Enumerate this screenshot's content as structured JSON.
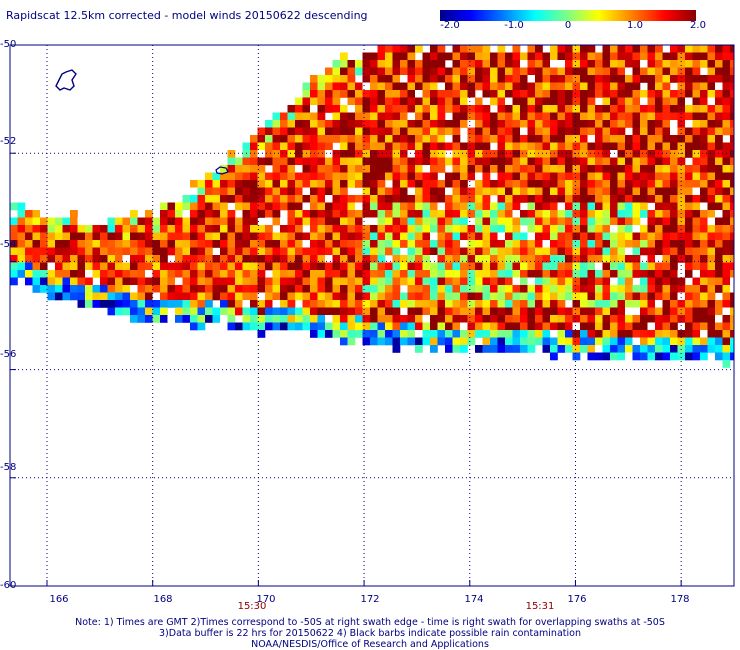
{
  "title": "Rapidscat 12.5km corrected - model winds 20150622 descending",
  "colorbar": {
    "min": -2.0,
    "max": 2.0,
    "tick_labels": [
      "-2.0",
      "-1.0",
      "0",
      "1.0",
      "2.0"
    ],
    "tick_values": [
      -2.0,
      -1.0,
      0,
      1.0,
      2.0
    ]
  },
  "map": {
    "lat_labels": [
      "-50",
      "-52",
      "-54",
      "-56",
      "-58",
      "-60"
    ],
    "lat_values": [
      -50,
      -52,
      -54,
      -56,
      -58,
      -60
    ],
    "lon_labels": [
      "166",
      "168",
      "170",
      "172",
      "174",
      "176",
      "178"
    ],
    "lon_values": [
      166,
      168,
      170,
      172,
      174,
      176,
      178
    ],
    "lon_range": [
      165.3,
      179.0
    ],
    "lat_range": [
      -60.0,
      -50.0
    ],
    "grid": true,
    "time_labels": [
      {
        "text": "15:30",
        "lon": 169.6
      },
      {
        "text": "15:31",
        "lon": 175.4
      }
    ]
  },
  "notes": [
    "Note: 1) Times are GMT 2)Times correspond to -50S at right swath edge - time is right swath for overlapping swaths at -50S",
    "3)Data buffer is 22 hrs for 20150622 4) Black barbs indicate possible rain contamination",
    "NOAA/NESDIS/Office of Research and Applications"
  ]
}
